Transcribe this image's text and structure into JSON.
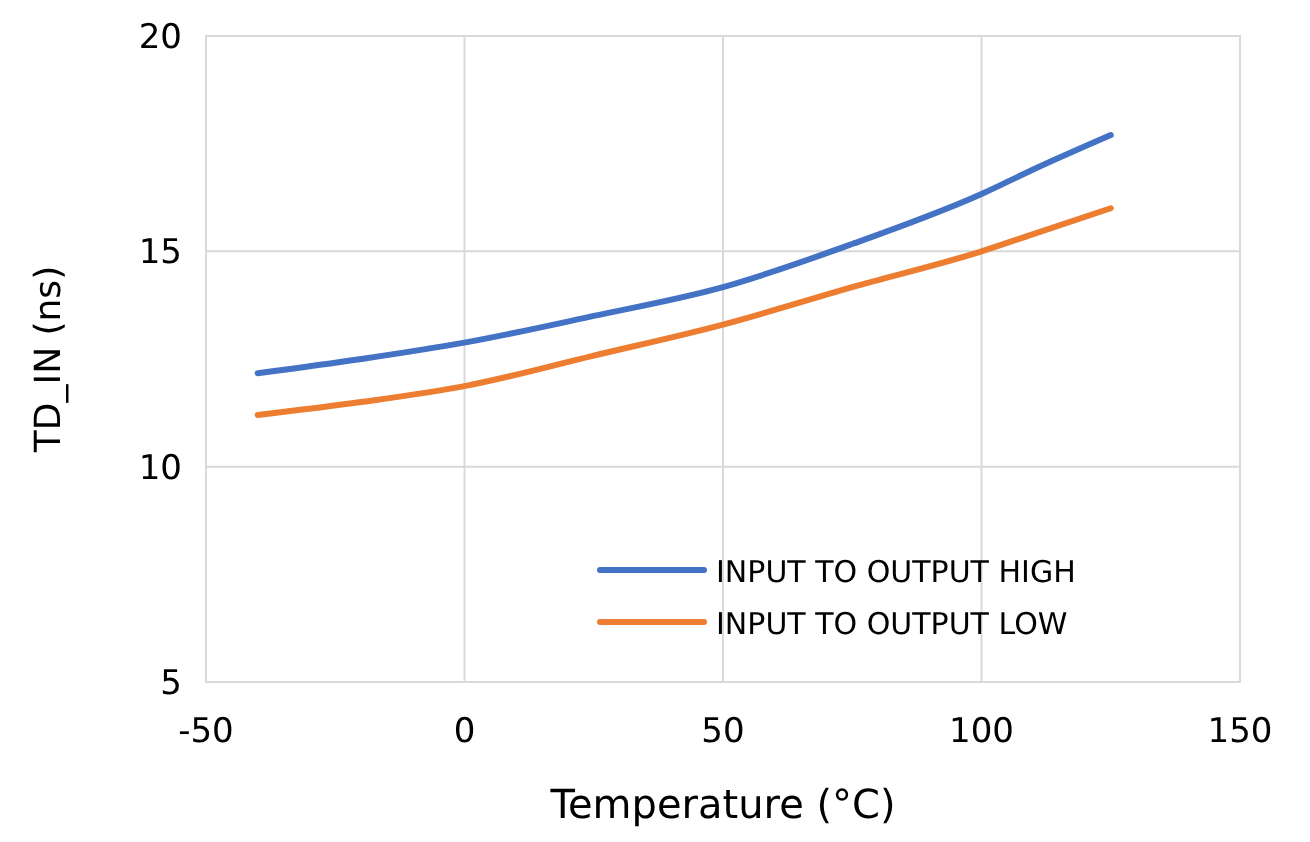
{
  "chart_data": {
    "type": "line",
    "xlabel": "Temperature (°C)",
    "ylabel": "TD_IN (ns)",
    "xlim": [
      -50,
      150
    ],
    "xticks": [
      -50,
      0,
      50,
      100,
      150
    ],
    "ylim": [
      5,
      20
    ],
    "yticks": [
      5,
      10,
      15,
      20
    ],
    "grid": true,
    "legend": "bottom right",
    "marker": "none",
    "series": [
      {
        "name": "INPUT TO OUTPUT HIGH",
        "color": "#4472c4",
        "x": [
          -40,
          -20,
          0,
          25,
          50,
          75,
          100,
          110,
          125
        ],
        "values": [
          12.17,
          12.5,
          12.88,
          13.5,
          14.17,
          15.17,
          16.33,
          16.9,
          17.7
        ]
      },
      {
        "name": "INPUT TO OUTPUT LOW",
        "color": "#ed7d31",
        "x": [
          -40,
          -20,
          0,
          25,
          50,
          75,
          100,
          110,
          125
        ],
        "values": [
          11.2,
          11.5,
          11.87,
          12.58,
          13.3,
          14.17,
          15.0,
          15.4,
          16.0
        ]
      }
    ]
  }
}
